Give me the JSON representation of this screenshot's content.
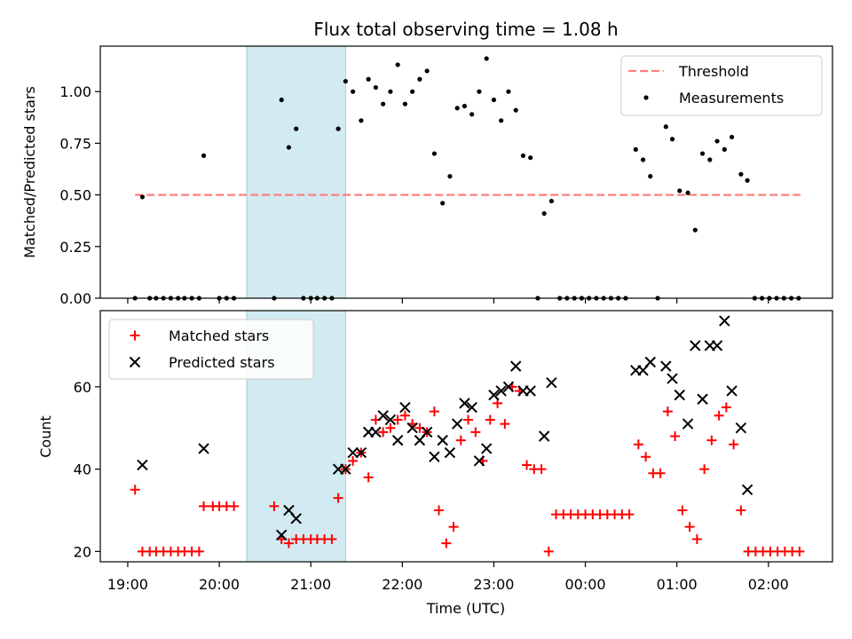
{
  "figure": {
    "title": "Flux total observing time = 1.08 h"
  },
  "chart_data": [
    {
      "type": "scatter",
      "panel": "top",
      "title": "Flux total observing time = 1.08 h",
      "xlabel": "",
      "ylabel": "Matched/Predicted stars",
      "x_unit": "hours since 19:00 UTC",
      "xlim": [
        -0.3,
        7.7
      ],
      "ylim": [
        0.0,
        1.22
      ],
      "yticks": [
        0.0,
        0.25,
        0.5,
        0.75,
        1.0
      ],
      "ytick_labels": [
        "0.00",
        "0.25",
        "0.50",
        "0.75",
        "1.00"
      ],
      "highlight_span": [
        1.3,
        2.38
      ],
      "highlight_color": "#add8e6",
      "legend_position": "upper right",
      "threshold": {
        "name": "Threshold",
        "value": 0.5,
        "x_range": [
          0.08,
          7.35
        ],
        "color": "#ff7f7f",
        "style": "dashed"
      },
      "series": [
        {
          "name": "Measurements",
          "color": "#000000",
          "marker": "dot",
          "points": [
            [
              0.08,
              0.0
            ],
            [
              0.16,
              0.49
            ],
            [
              0.24,
              0.0
            ],
            [
              0.31,
              0.0
            ],
            [
              0.39,
              0.0
            ],
            [
              0.47,
              0.0
            ],
            [
              0.55,
              0.0
            ],
            [
              0.62,
              0.0
            ],
            [
              0.7,
              0.0
            ],
            [
              0.78,
              0.0
            ],
            [
              0.83,
              0.69
            ],
            [
              1.0,
              0.0
            ],
            [
              1.08,
              0.0
            ],
            [
              1.16,
              0.0
            ],
            [
              1.6,
              0.0
            ],
            [
              1.68,
              0.96
            ],
            [
              1.76,
              0.73
            ],
            [
              1.84,
              0.82
            ],
            [
              1.92,
              0.0
            ],
            [
              2.0,
              0.0
            ],
            [
              2.07,
              0.0
            ],
            [
              2.15,
              0.0
            ],
            [
              2.23,
              0.0
            ],
            [
              2.3,
              0.82
            ],
            [
              2.38,
              1.05
            ],
            [
              2.46,
              1.0
            ],
            [
              2.55,
              0.86
            ],
            [
              2.63,
              1.06
            ],
            [
              2.71,
              1.02
            ],
            [
              2.79,
              0.94
            ],
            [
              2.87,
              1.0
            ],
            [
              2.95,
              1.13
            ],
            [
              3.03,
              0.94
            ],
            [
              3.11,
              1.0
            ],
            [
              3.19,
              1.06
            ],
            [
              3.27,
              1.1
            ],
            [
              3.35,
              0.7
            ],
            [
              3.44,
              0.46
            ],
            [
              3.52,
              0.59
            ],
            [
              3.6,
              0.92
            ],
            [
              3.68,
              0.93
            ],
            [
              3.76,
              0.89
            ],
            [
              3.84,
              1.0
            ],
            [
              3.92,
              1.16
            ],
            [
              4.0,
              0.96
            ],
            [
              4.08,
              0.86
            ],
            [
              4.16,
              1.0
            ],
            [
              4.24,
              0.91
            ],
            [
              4.32,
              0.69
            ],
            [
              4.4,
              0.68
            ],
            [
              4.48,
              0.0
            ],
            [
              4.55,
              0.41
            ],
            [
              4.63,
              0.47
            ],
            [
              4.72,
              0.0
            ],
            [
              4.8,
              0.0
            ],
            [
              4.88,
              0.0
            ],
            [
              4.96,
              0.0
            ],
            [
              5.04,
              0.0
            ],
            [
              5.12,
              0.0
            ],
            [
              5.2,
              0.0
            ],
            [
              5.28,
              0.0
            ],
            [
              5.36,
              0.0
            ],
            [
              5.44,
              0.0
            ],
            [
              5.55,
              0.72
            ],
            [
              5.63,
              0.67
            ],
            [
              5.71,
              0.59
            ],
            [
              5.79,
              0.0
            ],
            [
              5.88,
              0.83
            ],
            [
              5.95,
              0.77
            ],
            [
              6.03,
              0.52
            ],
            [
              6.12,
              0.51
            ],
            [
              6.2,
              0.33
            ],
            [
              6.28,
              0.7
            ],
            [
              6.36,
              0.67
            ],
            [
              6.44,
              0.76
            ],
            [
              6.52,
              0.72
            ],
            [
              6.6,
              0.78
            ],
            [
              6.7,
              0.6
            ],
            [
              6.77,
              0.57
            ],
            [
              6.85,
              0.0
            ],
            [
              6.93,
              0.0
            ],
            [
              7.01,
              0.0
            ],
            [
              7.09,
              0.0
            ],
            [
              7.17,
              0.0
            ],
            [
              7.25,
              0.0
            ],
            [
              7.33,
              0.0
            ]
          ]
        }
      ]
    },
    {
      "type": "scatter",
      "panel": "bottom",
      "xlabel": "Time (UTC)",
      "ylabel": "Count",
      "x_unit": "hours since 19:00 UTC",
      "xlim": [
        -0.3,
        7.7
      ],
      "ylim": [
        17.5,
        78.5
      ],
      "xticks": [
        0,
        1,
        2,
        3,
        4,
        5,
        6,
        7
      ],
      "xtick_labels": [
        "19:00",
        "20:00",
        "21:00",
        "22:00",
        "23:00",
        "00:00",
        "01:00",
        "02:00"
      ],
      "yticks": [
        20,
        40,
        60
      ],
      "ytick_labels": [
        "20",
        "40",
        "60"
      ],
      "highlight_span": [
        1.3,
        2.38
      ],
      "highlight_color": "#add8e6",
      "legend_position": "upper left",
      "series": [
        {
          "name": "Matched stars",
          "color": "#ff0000",
          "marker": "plus",
          "points": [
            [
              0.08,
              35
            ],
            [
              0.16,
              20
            ],
            [
              0.24,
              20
            ],
            [
              0.31,
              20
            ],
            [
              0.39,
              20
            ],
            [
              0.47,
              20
            ],
            [
              0.55,
              20
            ],
            [
              0.62,
              20
            ],
            [
              0.7,
              20
            ],
            [
              0.78,
              20
            ],
            [
              0.83,
              31
            ],
            [
              0.93,
              31
            ],
            [
              1.0,
              31
            ],
            [
              1.08,
              31
            ],
            [
              1.16,
              31
            ],
            [
              1.6,
              31
            ],
            [
              1.68,
              23
            ],
            [
              1.76,
              22
            ],
            [
              1.84,
              23
            ],
            [
              1.92,
              23
            ],
            [
              2.0,
              23
            ],
            [
              2.07,
              23
            ],
            [
              2.15,
              23
            ],
            [
              2.23,
              23
            ],
            [
              2.3,
              33
            ],
            [
              2.38,
              40
            ],
            [
              2.46,
              42
            ],
            [
              2.55,
              44
            ],
            [
              2.63,
              38
            ],
            [
              2.71,
              52
            ],
            [
              2.79,
              49
            ],
            [
              2.87,
              50
            ],
            [
              2.95,
              52
            ],
            [
              3.03,
              53
            ],
            [
              3.11,
              51
            ],
            [
              3.19,
              50
            ],
            [
              3.27,
              49
            ],
            [
              3.35,
              54
            ],
            [
              3.4,
              30
            ],
            [
              3.48,
              22
            ],
            [
              3.56,
              26
            ],
            [
              3.64,
              47
            ],
            [
              3.72,
              52
            ],
            [
              3.8,
              49
            ],
            [
              3.88,
              42
            ],
            [
              3.96,
              52
            ],
            [
              4.04,
              56
            ],
            [
              4.12,
              51
            ],
            [
              4.2,
              60
            ],
            [
              4.28,
              59
            ],
            [
              4.36,
              41
            ],
            [
              4.44,
              40
            ],
            [
              4.52,
              40
            ],
            [
              4.6,
              20
            ],
            [
              4.68,
              29
            ],
            [
              4.76,
              29
            ],
            [
              4.84,
              29
            ],
            [
              4.92,
              29
            ],
            [
              5.0,
              29
            ],
            [
              5.08,
              29
            ],
            [
              5.16,
              29
            ],
            [
              5.24,
              29
            ],
            [
              5.32,
              29
            ],
            [
              5.4,
              29
            ],
            [
              5.48,
              29
            ],
            [
              5.58,
              46
            ],
            [
              5.66,
              43
            ],
            [
              5.74,
              39
            ],
            [
              5.82,
              39
            ],
            [
              5.9,
              54
            ],
            [
              5.98,
              48
            ],
            [
              6.06,
              30
            ],
            [
              6.14,
              26
            ],
            [
              6.22,
              23
            ],
            [
              6.3,
              40
            ],
            [
              6.38,
              47
            ],
            [
              6.46,
              53
            ],
            [
              6.54,
              55
            ],
            [
              6.62,
              46
            ],
            [
              6.7,
              30
            ],
            [
              6.78,
              20
            ],
            [
              6.86,
              20
            ],
            [
              6.94,
              20
            ],
            [
              7.02,
              20
            ],
            [
              7.1,
              20
            ],
            [
              7.18,
              20
            ],
            [
              7.26,
              20
            ],
            [
              7.34,
              20
            ]
          ]
        },
        {
          "name": "Predicted stars",
          "color": "#000000",
          "marker": "x",
          "points": [
            [
              0.16,
              41
            ],
            [
              0.83,
              45
            ],
            [
              1.68,
              24
            ],
            [
              1.76,
              30
            ],
            [
              1.84,
              28
            ],
            [
              2.3,
              40
            ],
            [
              2.38,
              40
            ],
            [
              2.46,
              44
            ],
            [
              2.55,
              44
            ],
            [
              2.63,
              49
            ],
            [
              2.71,
              49
            ],
            [
              2.79,
              53
            ],
            [
              2.87,
              52
            ],
            [
              2.95,
              47
            ],
            [
              3.03,
              55
            ],
            [
              3.11,
              50
            ],
            [
              3.19,
              47
            ],
            [
              3.27,
              49
            ],
            [
              3.35,
              43
            ],
            [
              3.44,
              47
            ],
            [
              3.52,
              44
            ],
            [
              3.6,
              51
            ],
            [
              3.68,
              56
            ],
            [
              3.76,
              55
            ],
            [
              3.84,
              42
            ],
            [
              3.92,
              45
            ],
            [
              4.0,
              58
            ],
            [
              4.08,
              59
            ],
            [
              4.16,
              60
            ],
            [
              4.24,
              65
            ],
            [
              4.32,
              59
            ],
            [
              4.4,
              59
            ],
            [
              4.55,
              48
            ],
            [
              4.63,
              61
            ],
            [
              5.55,
              64
            ],
            [
              5.63,
              64
            ],
            [
              5.71,
              66
            ],
            [
              5.88,
              65
            ],
            [
              5.95,
              62
            ],
            [
              6.03,
              58
            ],
            [
              6.12,
              51
            ],
            [
              6.2,
              70
            ],
            [
              6.28,
              57
            ],
            [
              6.36,
              70
            ],
            [
              6.44,
              70
            ],
            [
              6.52,
              76
            ],
            [
              6.6,
              59
            ],
            [
              6.7,
              50
            ],
            [
              6.77,
              35
            ]
          ]
        }
      ]
    }
  ]
}
